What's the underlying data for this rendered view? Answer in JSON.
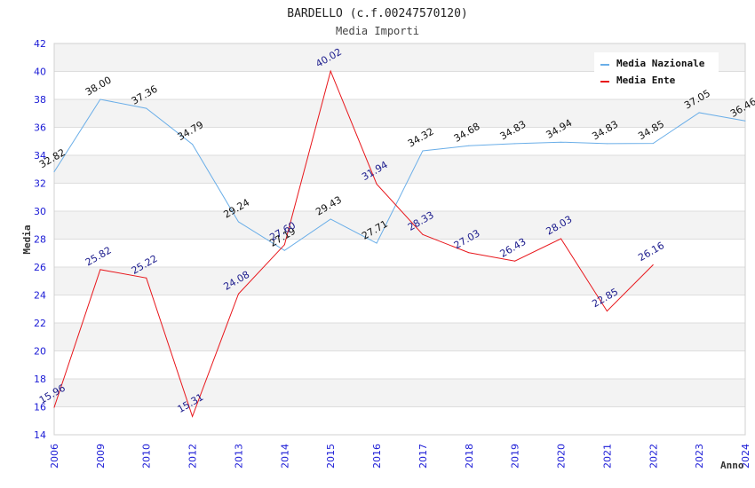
{
  "chart_data": {
    "type": "line",
    "title": "BARDELLO (c.f.00247570120)",
    "subtitle": "Media Importi",
    "xlabel": "Anno",
    "ylabel": "Media",
    "ylim": [
      14,
      42
    ],
    "yticks": [
      "14",
      "16",
      "18",
      "20",
      "22",
      "24",
      "26",
      "28",
      "30",
      "32",
      "34",
      "36",
      "38",
      "40",
      "42"
    ],
    "categories": [
      "2006",
      "2009",
      "2010",
      "2012",
      "2013",
      "2014",
      "2015",
      "2016",
      "2017",
      "2018",
      "2019",
      "2020",
      "2021",
      "2022",
      "2023",
      "2024"
    ],
    "grid": true,
    "legend_position": "top-right",
    "series": [
      {
        "name": "Media Nazionale",
        "color": "#6aaee8",
        "values": [
          32.82,
          38.0,
          37.36,
          34.79,
          29.24,
          27.19,
          29.43,
          27.71,
          34.32,
          34.68,
          34.83,
          34.94,
          34.83,
          34.85,
          37.05,
          36.46
        ],
        "labels": [
          "32.82",
          "38.00",
          "37.36",
          "34.79",
          "29.24",
          "27.19",
          "29.43",
          "27.71",
          "34.32",
          "34.68",
          "34.83",
          "34.94",
          "34.83",
          "34.85",
          "37.05",
          "36.46"
        ]
      },
      {
        "name": "Media Ente",
        "color": "#e8161b",
        "values": [
          15.96,
          25.82,
          25.22,
          15.31,
          24.08,
          27.6,
          40.02,
          31.94,
          28.33,
          27.03,
          26.43,
          28.03,
          22.85,
          26.16,
          null,
          null
        ],
        "labels": [
          "15.96",
          "25.82",
          "25.22",
          "15.31",
          "24.08",
          "27.60",
          "40.02",
          "31.94",
          "28.33",
          "27.03",
          "26.43",
          "28.03",
          "22.85",
          "26.16",
          null,
          null
        ]
      }
    ]
  }
}
